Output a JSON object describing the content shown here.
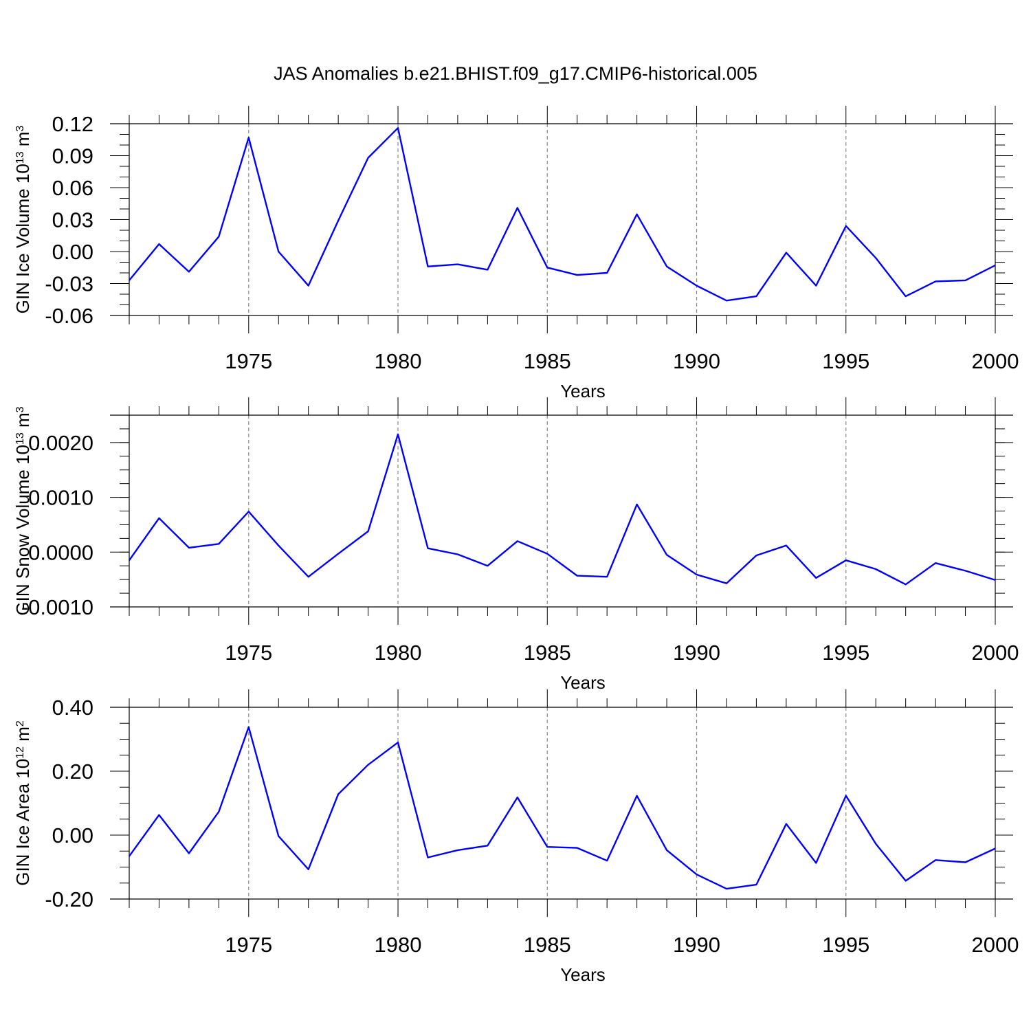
{
  "title": "JAS Anomalies b.e21.BHIST.f09_g17.CMIP6-historical.005",
  "chart_data": [
    {
      "type": "line",
      "title": "",
      "xlabel": "Years",
      "ylabel": "GIN Ice Volume 10",
      "ylabel_exponent": "13",
      "ylabel_unit": "m",
      "ylabel_unit_exponent": "3",
      "xlim": [
        1971,
        2000
      ],
      "ylim": [
        -0.06,
        0.12
      ],
      "xticks": [
        "1975",
        "1980",
        "1985",
        "1990",
        "1995",
        "2000"
      ],
      "yticks": [
        "0.12",
        "0.09",
        "0.06",
        "0.03",
        "0.00",
        "-0.03",
        "-0.06"
      ],
      "grid": "dashed vertical lines at 1975, 1980, 1985, 1990, 1995",
      "line_color": "#0000ff",
      "x": [
        1971,
        1972,
        1973,
        1974,
        1975,
        1976,
        1977,
        1978,
        1979,
        1980,
        1981,
        1982,
        1983,
        1984,
        1985,
        1986,
        1987,
        1988,
        1989,
        1990,
        1991,
        1992,
        1993,
        1994,
        1995,
        1996,
        1997,
        1998,
        1999,
        2000
      ],
      "y": [
        -0.027,
        0.007,
        -0.019,
        0.014,
        0.107,
        0.0,
        -0.032,
        0.029,
        0.088,
        0.116,
        -0.014,
        -0.012,
        -0.017,
        0.041,
        -0.015,
        -0.022,
        -0.02,
        0.035,
        -0.014,
        -0.032,
        -0.046,
        -0.042,
        -0.001,
        -0.032,
        0.024,
        -0.006,
        -0.042,
        -0.028,
        -0.027,
        -0.013
      ]
    },
    {
      "type": "line",
      "title": "",
      "xlabel": "Years",
      "ylabel": "GIN Snow Volume 10",
      "ylabel_exponent": "13",
      "ylabel_unit": "m",
      "ylabel_unit_exponent": "3",
      "xlim": [
        1971,
        2000
      ],
      "ylim": [
        -0.001,
        0.0025
      ],
      "xticks": [
        "1975",
        "1980",
        "1985",
        "1990",
        "1995",
        "2000"
      ],
      "yticks": [
        "0.0020",
        "0.0010",
        "0.0000",
        "-0.0010"
      ],
      "grid": "dashed vertical lines at 1975, 1980, 1985, 1990, 1995",
      "line_color": "#0000ff",
      "x": [
        1971,
        1972,
        1973,
        1974,
        1975,
        1976,
        1977,
        1978,
        1979,
        1980,
        1981,
        1982,
        1983,
        1984,
        1985,
        1986,
        1987,
        1988,
        1989,
        1990,
        1991,
        1992,
        1993,
        1994,
        1995,
        1996,
        1997,
        1998,
        1999,
        2000
      ],
      "y": [
        -0.00015,
        0.00062,
        8e-05,
        0.00015,
        0.00074,
        0.00012,
        -0.00045,
        -3e-05,
        0.00038,
        0.00215,
        7e-05,
        -4e-05,
        -0.00025,
        0.0002,
        -3e-05,
        -0.00043,
        -0.00045,
        0.00087,
        -5e-05,
        -0.00041,
        -0.00057,
        -6e-05,
        0.00012,
        -0.00047,
        -0.00015,
        -0.00031,
        -0.00059,
        -0.0002,
        -0.00034,
        -0.00051
      ]
    },
    {
      "type": "line",
      "title": "",
      "xlabel": "Years",
      "ylabel": "GIN Ice Area 10",
      "ylabel_exponent": "12",
      "ylabel_unit": "m",
      "ylabel_unit_exponent": "2",
      "xlim": [
        1971,
        2000
      ],
      "ylim": [
        -0.2,
        0.4
      ],
      "xticks": [
        "1975",
        "1980",
        "1985",
        "1990",
        "1995",
        "2000"
      ],
      "yticks": [
        "0.40",
        "0.20",
        "0.00",
        "-0.20"
      ],
      "grid": "dashed vertical lines at 1975, 1980, 1985, 1990, 1995",
      "line_color": "#0000ff",
      "x": [
        1971,
        1972,
        1973,
        1974,
        1975,
        1976,
        1977,
        1978,
        1979,
        1980,
        1981,
        1982,
        1983,
        1984,
        1985,
        1986,
        1987,
        1988,
        1989,
        1990,
        1991,
        1992,
        1993,
        1994,
        1995,
        1996,
        1997,
        1998,
        1999,
        2000
      ],
      "y": [
        -0.066,
        0.063,
        -0.057,
        0.073,
        0.338,
        -0.003,
        -0.107,
        0.128,
        0.22,
        0.29,
        -0.07,
        -0.047,
        -0.033,
        0.118,
        -0.037,
        -0.04,
        -0.08,
        0.123,
        -0.047,
        -0.123,
        -0.168,
        -0.155,
        0.035,
        -0.087,
        0.123,
        -0.027,
        -0.143,
        -0.078,
        -0.085,
        -0.042
      ]
    }
  ]
}
